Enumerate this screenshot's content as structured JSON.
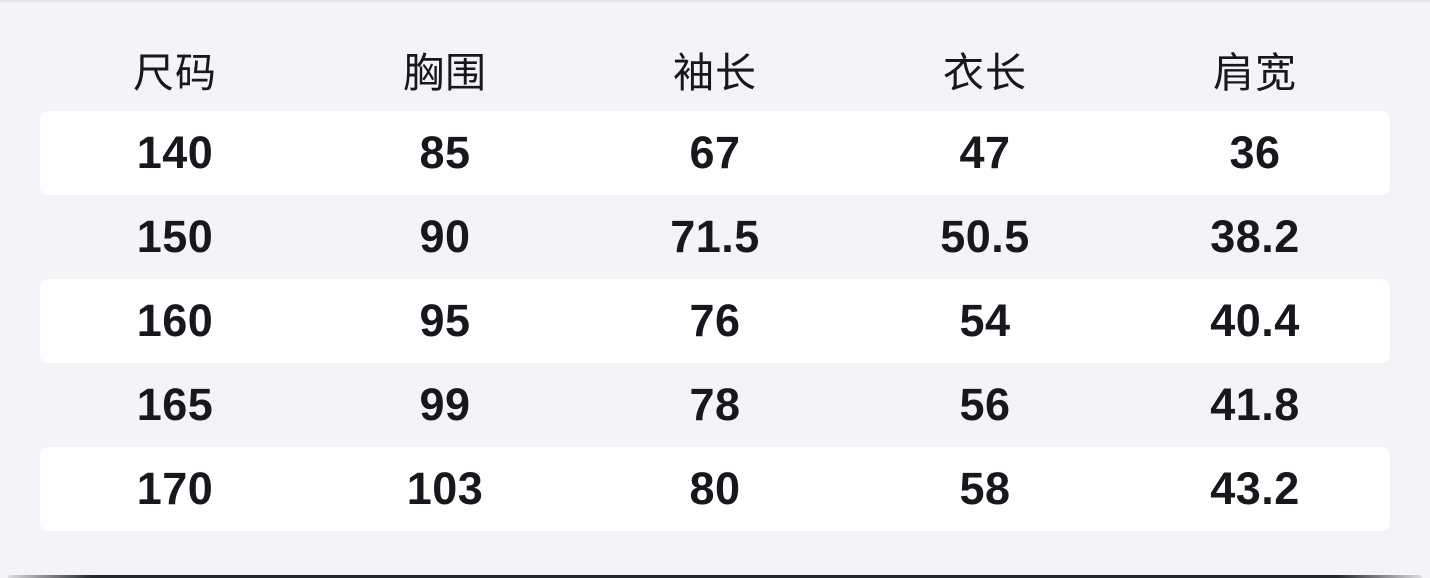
{
  "chart_data": {
    "type": "table",
    "title": "",
    "columns": [
      "尺码",
      "胸围",
      "袖长",
      "衣长",
      "肩宽"
    ],
    "rows": [
      [
        "140",
        "85",
        "67",
        "47",
        "36"
      ],
      [
        "150",
        "90",
        "71.5",
        "50.5",
        "38.2"
      ],
      [
        "160",
        "95",
        "76",
        "54",
        "40.4"
      ],
      [
        "165",
        "99",
        "78",
        "56",
        "41.8"
      ],
      [
        "170",
        "103",
        "80",
        "58",
        "43.2"
      ]
    ],
    "layout_hints": {
      "striped_rows": "odd data rows have white background on lavender page",
      "alignment": "center",
      "header_weight": "medium",
      "cell_weight": "bold"
    }
  },
  "colors": {
    "page_background": "#f3f3f8",
    "row_stripe": "#ffffff",
    "text": "#17171e",
    "bottom_bar": "#14141c"
  }
}
